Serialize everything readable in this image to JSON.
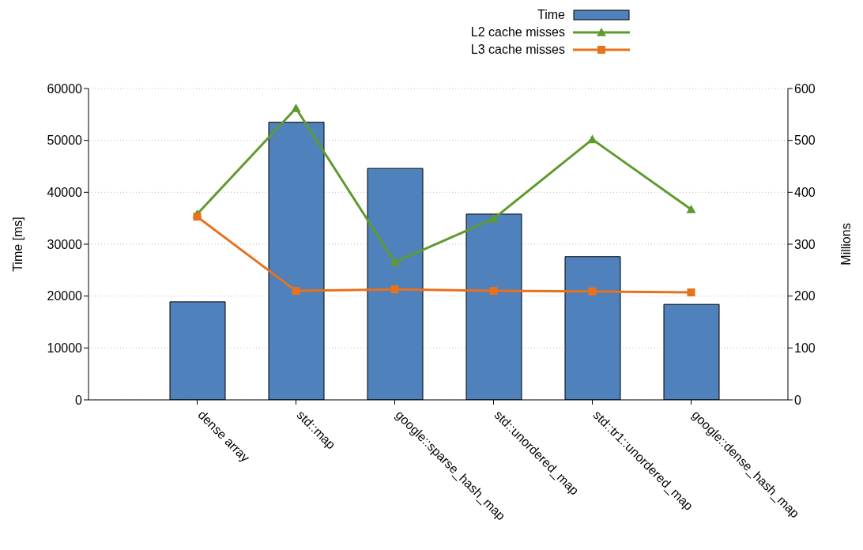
{
  "chart_data": {
    "type": "bar",
    "ylabel": "Time [ms]",
    "y2label": "Millions",
    "categories": [
      "dense array",
      "std::map",
      "google::sparse_hash_map",
      "std::unordered_map",
      "std::tr1::unordered_map",
      "google::dense_hash_map"
    ],
    "series": [
      {
        "name": "Time",
        "color": "#4f81bd",
        "values": [
          18900,
          53500,
          44600,
          35800,
          27600,
          18400
        ]
      },
      {
        "name": "L2 cache misses",
        "type": "line",
        "axis": "y2",
        "marker": "triangle",
        "color": "#5f9a2f",
        "values": [
          358,
          562,
          265,
          349,
          502,
          367
        ]
      },
      {
        "name": "L3 cache misses",
        "type": "line",
        "axis": "y2",
        "marker": "square",
        "color": "#e8711c",
        "values": [
          353,
          210,
          213,
          210,
          209,
          207
        ]
      }
    ],
    "ylim": [
      0,
      60000
    ],
    "yticks": [
      0,
      10000,
      20000,
      30000,
      40000,
      50000,
      60000
    ],
    "y2lim": [
      0,
      600
    ],
    "y2ticks": [
      0,
      100,
      200,
      300,
      400,
      500,
      600
    ],
    "grid": "y",
    "legend": "top",
    "line_style": "solid"
  }
}
